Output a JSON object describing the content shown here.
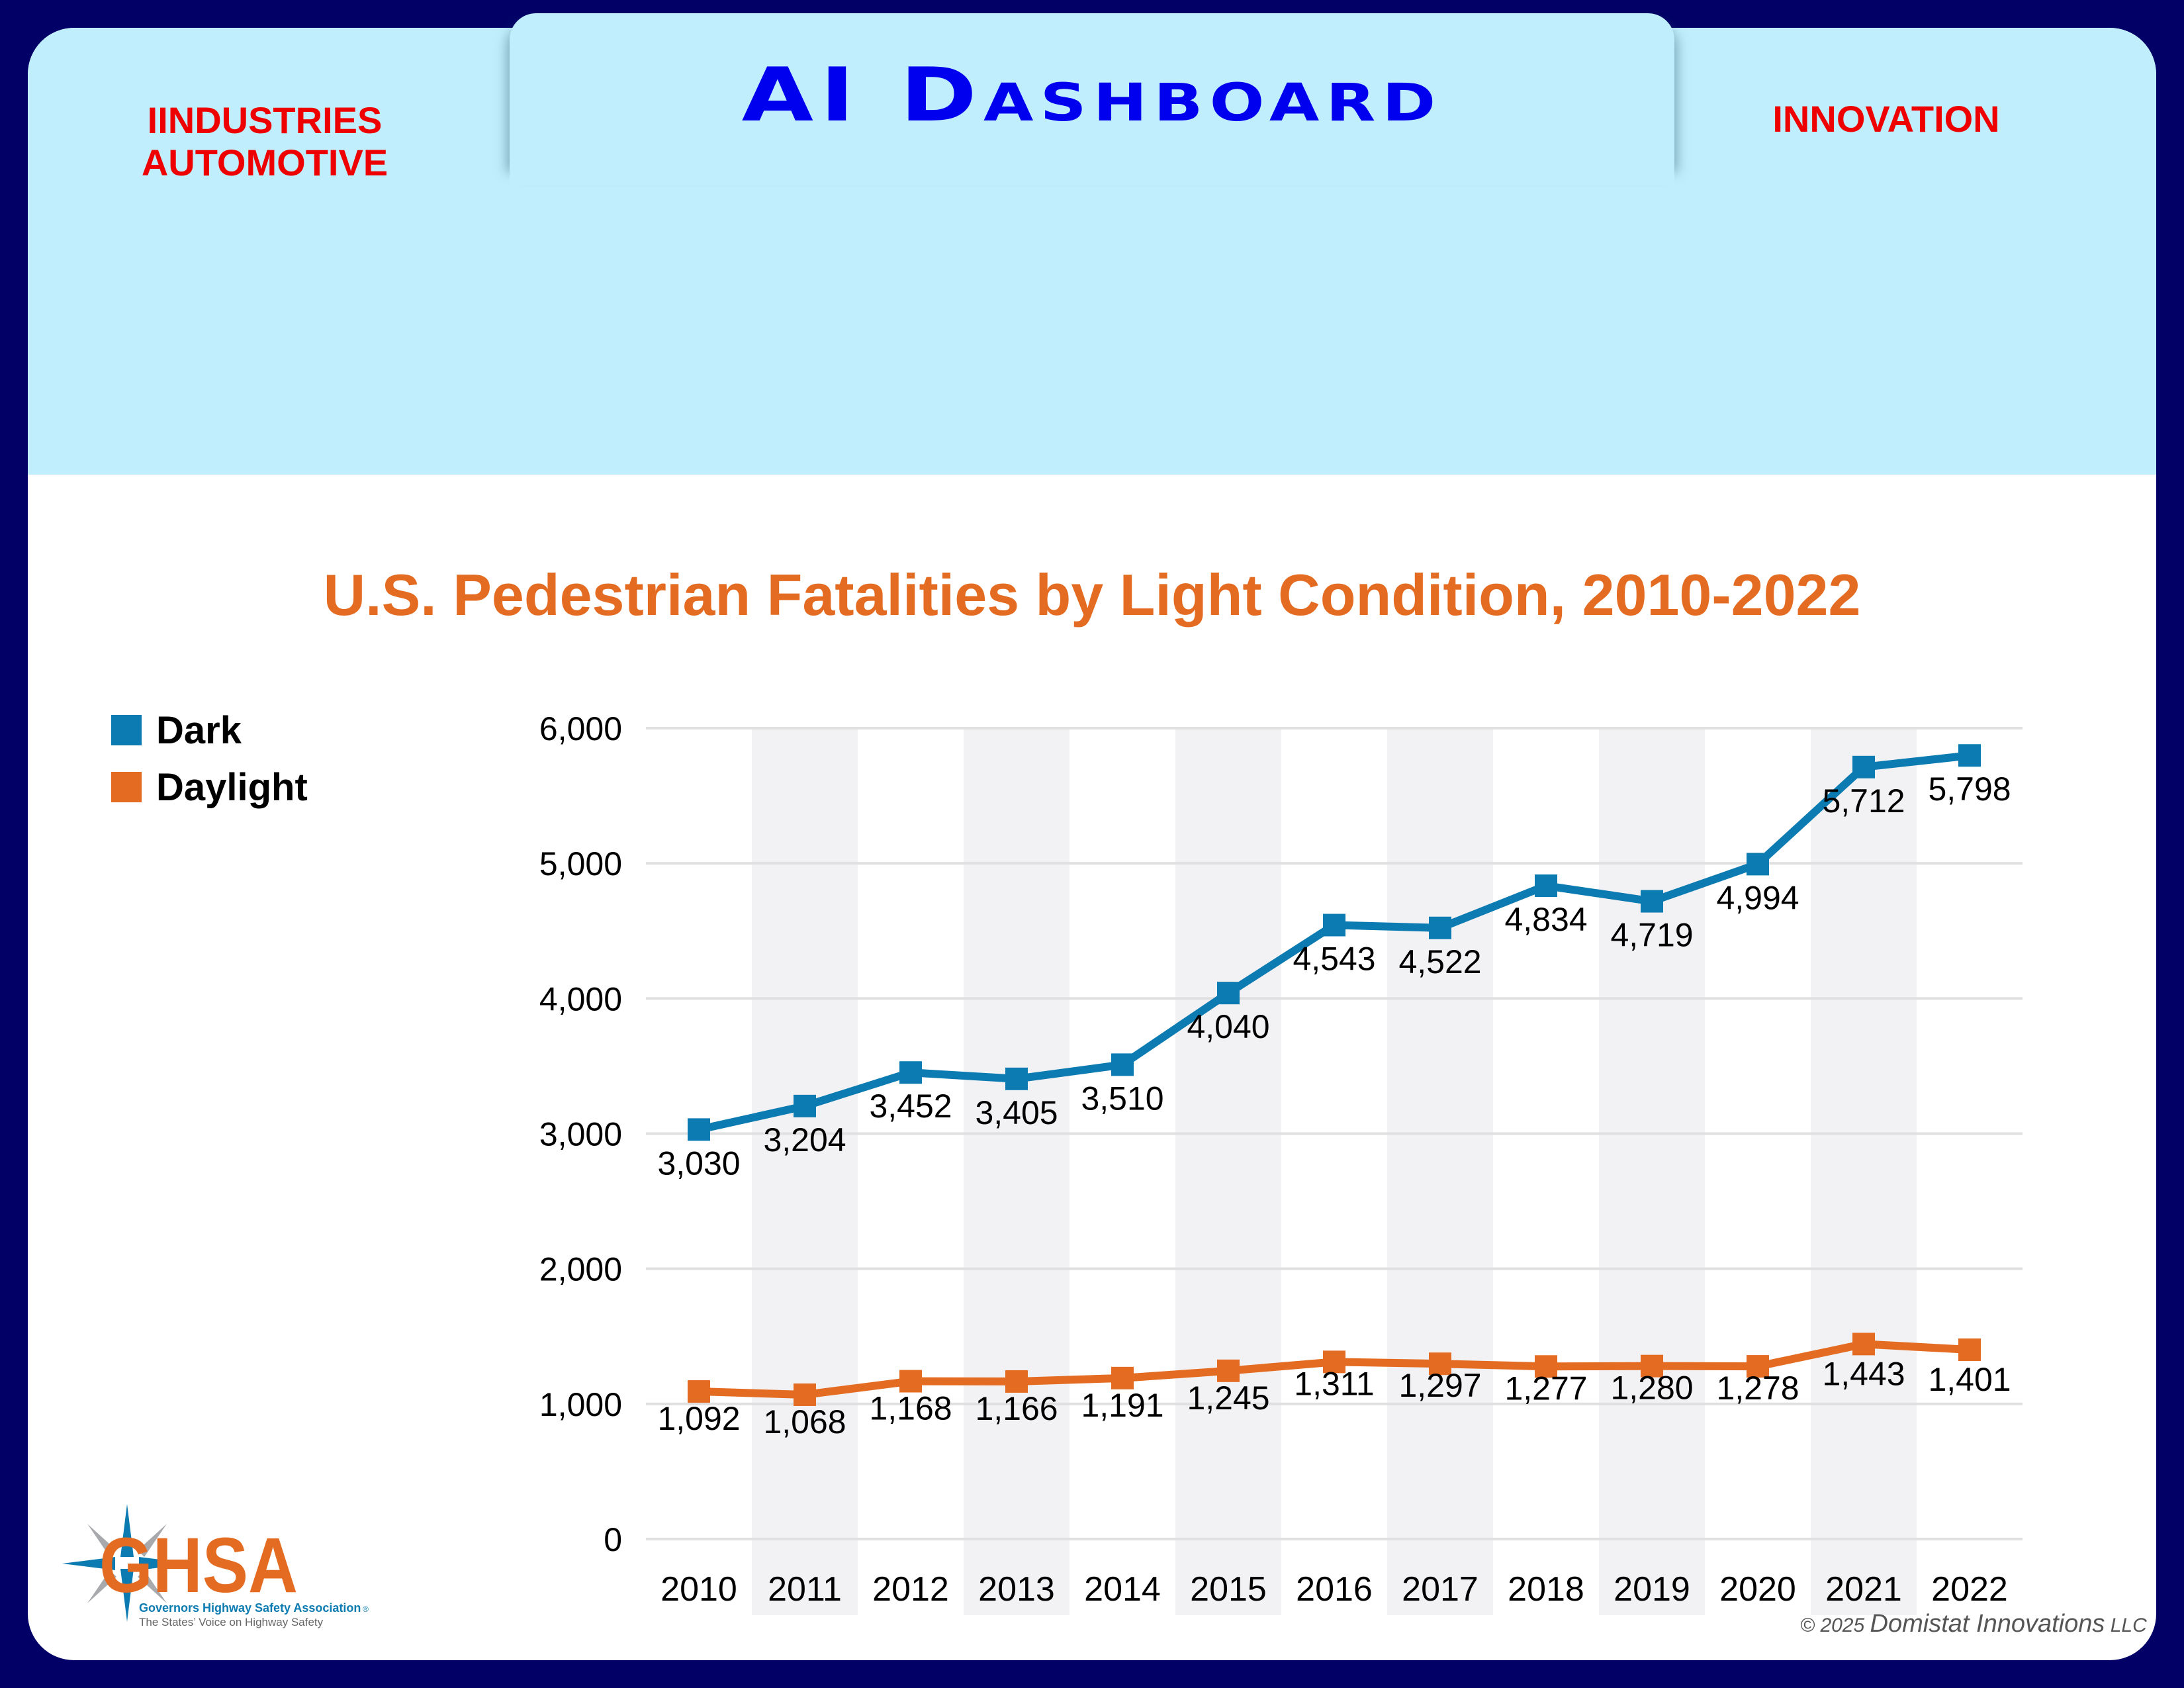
{
  "header": {
    "app_title": "AI Dashboard",
    "left_label_line1": "IINDUSTRIES",
    "left_label_line2": "AUTOMOTIVE",
    "right_label": "INNOVATION"
  },
  "colors": {
    "background": "#020066",
    "header_panel": "#c1eefc",
    "title_blue": "#0000ee",
    "label_red": "#ee0000",
    "chart_title_orange": "#e46c22",
    "dark_series": "#0b7bb1",
    "daylight_series": "#e46c22",
    "band": "#f2f2f4",
    "gridline": "#e0e0e0"
  },
  "logo": {
    "icon": "compass-star-icon",
    "letters": "GHSA",
    "name": "Governors Highway Safety Association",
    "registered": "®",
    "tagline": "The States’ Voice on Highway Safety"
  },
  "footer": {
    "copyright_prefix": "© 2025",
    "company": "Domistat Innovations",
    "suffix": "LLC"
  },
  "chart_data": {
    "type": "line",
    "title": "U.S. Pedestrian Fatalities by Light Condition, 2010-2022",
    "xlabel": "",
    "ylabel": "",
    "categories": [
      "2010",
      "2011",
      "2012",
      "2013",
      "2014",
      "2015",
      "2016",
      "2017",
      "2018",
      "2019",
      "2020",
      "2021",
      "2022"
    ],
    "y_ticks": [
      0,
      1000,
      2000,
      3000,
      4000,
      5000,
      6000
    ],
    "y_tick_labels": [
      "0",
      "1,000",
      "2,000",
      "3,000",
      "4,000",
      "5,000",
      "6,000"
    ],
    "ylim": [
      0,
      6000
    ],
    "grid": true,
    "alternating_column_bands": true,
    "legend_position": "top-left",
    "series": [
      {
        "name": "Dark",
        "color": "#0b7bb1",
        "marker": "square",
        "values": [
          3030,
          3204,
          3452,
          3405,
          3510,
          4040,
          4543,
          4522,
          4834,
          4719,
          4994,
          5712,
          5798
        ],
        "labels": [
          "3,030",
          "3,204",
          "3,452",
          "3,405",
          "3,510",
          "4,040",
          "4,543",
          "4,522",
          "4,834",
          "4,719",
          "4,994",
          "5,712",
          "5,798"
        ]
      },
      {
        "name": "Daylight",
        "color": "#e46c22",
        "marker": "square",
        "values": [
          1092,
          1068,
          1168,
          1166,
          1191,
          1245,
          1311,
          1297,
          1277,
          1280,
          1278,
          1443,
          1401
        ],
        "labels": [
          "1,092",
          "1,068",
          "1,168",
          "1,166",
          "1,191",
          "1,245",
          "1,311",
          "1,297",
          "1,277",
          "1,280",
          "1,278",
          "1,443",
          "1,401"
        ]
      }
    ]
  }
}
